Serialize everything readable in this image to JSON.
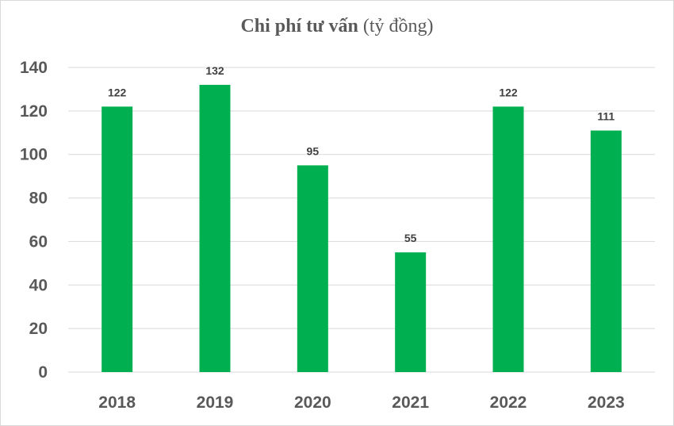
{
  "chart_data": {
    "type": "bar",
    "title": "Chi phí tư vấn",
    "title_unit": "(tỷ đồng)",
    "categories": [
      "2018",
      "2019",
      "2020",
      "2021",
      "2022",
      "2023"
    ],
    "values": [
      122,
      132,
      95,
      55,
      122,
      111
    ],
    "data_labels": [
      "122",
      "132",
      "95",
      "55",
      "122",
      "111"
    ],
    "ylim": [
      0,
      140
    ],
    "yticks": [
      "0",
      "20",
      "40",
      "60",
      "80",
      "100",
      "120",
      "140"
    ],
    "grid": true,
    "legend": "none",
    "xlabel": "",
    "ylabel": "",
    "colors": {
      "bar": "#00b050",
      "grid": "#d9d9d9",
      "axis": "#d9d9d9",
      "text": "#595959"
    }
  }
}
